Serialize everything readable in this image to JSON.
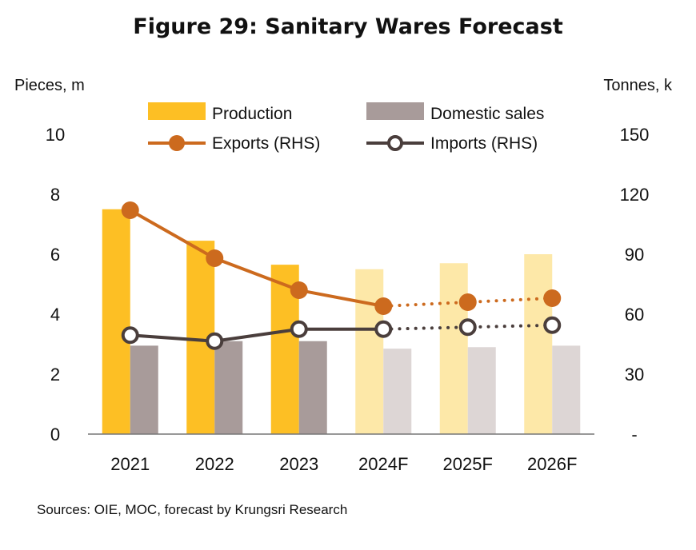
{
  "title": "Figure 29: Sanitary Wares Forecast",
  "source": "Sources: OIE, MOC, forecast by Krungsri Research",
  "chart_data": {
    "type": "bar",
    "categories": [
      "2021",
      "2022",
      "2023",
      "2024F",
      "2025F",
      "2026F"
    ],
    "forecast_start_index": 3,
    "ylabel_left": "Pieces, m",
    "ylabel_right": "Tonnes, k",
    "ylim_left": [
      0,
      10
    ],
    "ylim_right": [
      0,
      150
    ],
    "yticks_left": [
      "0",
      "2",
      "4",
      "6",
      "8",
      "10"
    ],
    "yticks_right": [
      "-",
      "30",
      "60",
      "90",
      "120",
      "150"
    ],
    "grid": false,
    "legend_position": "top",
    "series": [
      {
        "name": "Production",
        "kind": "bar",
        "axis": "left",
        "color": "#FDBF24",
        "forecast_color": "#FDE8A8",
        "values": [
          7.5,
          6.45,
          5.65,
          5.5,
          5.7,
          6.0
        ]
      },
      {
        "name": "Domestic sales",
        "kind": "bar",
        "axis": "left",
        "color": "#A89B9A",
        "forecast_color": "#DDD6D5",
        "values": [
          2.95,
          3.1,
          3.1,
          2.85,
          2.9,
          2.95
        ]
      },
      {
        "name": "Exports (RHS)",
        "kind": "line",
        "axis": "right",
        "color": "#CC6A1E",
        "values": [
          112,
          88,
          72,
          64,
          66,
          68
        ]
      },
      {
        "name": "Imports (RHS)",
        "kind": "line",
        "axis": "right",
        "color": "#4A3E3C",
        "values": [
          49.5,
          46.5,
          52.5,
          52.5,
          53.5,
          54.5
        ]
      }
    ]
  }
}
